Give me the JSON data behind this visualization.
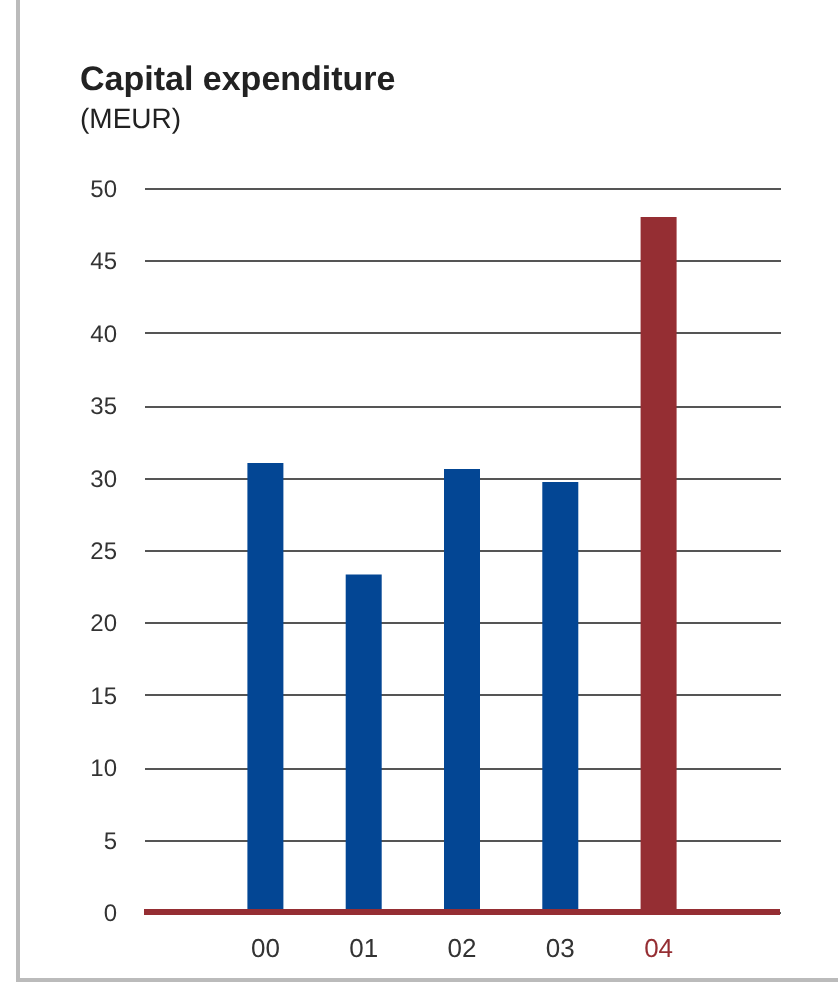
{
  "chart_data": {
    "type": "bar",
    "title": "Capital expenditure",
    "subtitle": "(MEUR)",
    "categories": [
      "00",
      "01",
      "02",
      "03",
      "04"
    ],
    "values": [
      31.0,
      23.3,
      30.6,
      29.7,
      48.0
    ],
    "colors": [
      "#034694",
      "#034694",
      "#034694",
      "#034694",
      "#952e33"
    ],
    "ylim": [
      0,
      50
    ],
    "yticks": [
      0,
      5,
      10,
      15,
      20,
      25,
      30,
      35,
      40,
      45,
      50
    ],
    "grid": "y"
  }
}
